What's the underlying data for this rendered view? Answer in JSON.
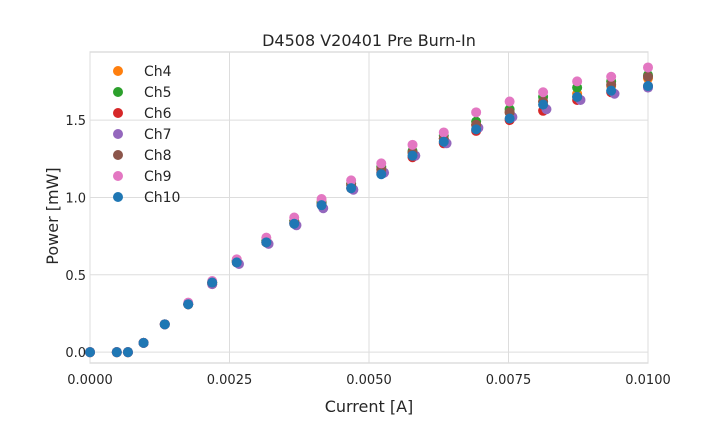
{
  "chart_data": {
    "type": "scatter",
    "title": "D4508 V20401 Pre Burn-In",
    "xlabel": "Current [A]",
    "ylabel": "Power [mW]",
    "xlim": [
      0,
      0.01
    ],
    "ylim": [
      -0.07,
      1.94
    ],
    "xticks": [
      {
        "value": 0.0,
        "label": "0.0000"
      },
      {
        "value": 0.0025,
        "label": "0.0025"
      },
      {
        "value": 0.005,
        "label": "0.0050"
      },
      {
        "value": 0.0075,
        "label": "0.0075"
      },
      {
        "value": 0.01,
        "label": "0.0100"
      }
    ],
    "yticks": [
      {
        "value": 0.0,
        "label": "0.0"
      },
      {
        "value": 0.5,
        "label": "0.5"
      },
      {
        "value": 1.0,
        "label": "1.0"
      },
      {
        "value": 1.5,
        "label": "1.5"
      }
    ],
    "grid": true,
    "legend_position": "top-left",
    "series": [
      {
        "name": "Ch4",
        "color": "#ff7f0e",
        "x": [
          0.0,
          0.00048,
          0.00068,
          0.00096,
          0.00134,
          0.00176,
          0.00219,
          0.00263,
          0.00316,
          0.00366,
          0.00415,
          0.00468,
          0.00522,
          0.00578,
          0.00634,
          0.00692,
          0.00752,
          0.00812,
          0.00873,
          0.00934,
          0.01
        ],
        "y": [
          0.0,
          0.0,
          0.0,
          0.06,
          0.18,
          0.31,
          0.45,
          0.59,
          0.72,
          0.85,
          0.97,
          1.09,
          1.19,
          1.29,
          1.38,
          1.47,
          1.55,
          1.62,
          1.67,
          1.72,
          1.77
        ]
      },
      {
        "name": "Ch5",
        "color": "#2ca02c",
        "x": [
          0.0,
          0.00048,
          0.00068,
          0.00096,
          0.00134,
          0.00176,
          0.00219,
          0.00263,
          0.00316,
          0.00366,
          0.00415,
          0.00468,
          0.00522,
          0.00578,
          0.00634,
          0.00692,
          0.00752,
          0.00812,
          0.00873,
          0.00934,
          0.01
        ],
        "y": [
          0.0,
          0.0,
          0.0,
          0.06,
          0.18,
          0.31,
          0.45,
          0.59,
          0.72,
          0.85,
          0.97,
          1.09,
          1.2,
          1.3,
          1.4,
          1.49,
          1.57,
          1.65,
          1.71,
          1.75,
          1.79
        ]
      },
      {
        "name": "Ch6",
        "color": "#d62728",
        "x": [
          0.0,
          0.00048,
          0.00068,
          0.00096,
          0.00134,
          0.00176,
          0.00219,
          0.00263,
          0.00316,
          0.00366,
          0.00415,
          0.00468,
          0.00522,
          0.00578,
          0.00634,
          0.00692,
          0.00752,
          0.00812,
          0.00873,
          0.00934,
          0.01
        ],
        "y": [
          0.0,
          0.0,
          0.0,
          0.06,
          0.18,
          0.31,
          0.44,
          0.58,
          0.71,
          0.83,
          0.95,
          1.06,
          1.16,
          1.26,
          1.35,
          1.43,
          1.5,
          1.56,
          1.63,
          1.68,
          1.72
        ]
      },
      {
        "name": "Ch7",
        "color": "#9467bd",
        "x": [
          0.0,
          0.00048,
          0.00068,
          0.00096,
          0.00134,
          0.00176,
          0.00219,
          0.00267,
          0.0032,
          0.0037,
          0.00418,
          0.00472,
          0.00527,
          0.00583,
          0.00639,
          0.00696,
          0.00757,
          0.00818,
          0.00879,
          0.0094,
          0.01
        ],
        "y": [
          0.0,
          0.0,
          0.0,
          0.06,
          0.18,
          0.31,
          0.44,
          0.57,
          0.7,
          0.82,
          0.93,
          1.05,
          1.16,
          1.27,
          1.35,
          1.45,
          1.52,
          1.57,
          1.63,
          1.67,
          1.71
        ]
      },
      {
        "name": "Ch8",
        "color": "#8c564b",
        "x": [
          0.0,
          0.00048,
          0.00068,
          0.00096,
          0.00134,
          0.00176,
          0.00219,
          0.00263,
          0.00316,
          0.00366,
          0.00415,
          0.00468,
          0.00522,
          0.00578,
          0.00634,
          0.00692,
          0.00752,
          0.00812,
          0.00873,
          0.00934,
          0.01
        ],
        "y": [
          0.0,
          0.0,
          0.0,
          0.06,
          0.18,
          0.31,
          0.45,
          0.59,
          0.71,
          0.84,
          0.96,
          1.08,
          1.18,
          1.29,
          1.38,
          1.47,
          1.55,
          1.62,
          1.65,
          1.73,
          1.78
        ]
      },
      {
        "name": "Ch9",
        "color": "#e377c2",
        "x": [
          0.0,
          0.00048,
          0.00068,
          0.00096,
          0.00134,
          0.00176,
          0.00219,
          0.00263,
          0.00316,
          0.00366,
          0.00415,
          0.00468,
          0.00522,
          0.00578,
          0.00634,
          0.00692,
          0.00752,
          0.00812,
          0.00873,
          0.00934,
          0.01
        ],
        "y": [
          0.0,
          0.0,
          0.0,
          0.06,
          0.18,
          0.32,
          0.46,
          0.6,
          0.74,
          0.87,
          0.99,
          1.11,
          1.22,
          1.34,
          1.42,
          1.55,
          1.62,
          1.68,
          1.75,
          1.78,
          1.84
        ]
      },
      {
        "name": "Ch10",
        "color": "#1f77b4",
        "x": [
          0.0,
          0.00048,
          0.00068,
          0.00096,
          0.00134,
          0.00176,
          0.00219,
          0.00263,
          0.00316,
          0.00366,
          0.00415,
          0.00468,
          0.00522,
          0.00578,
          0.00634,
          0.00692,
          0.00752,
          0.00812,
          0.00873,
          0.00934,
          0.01
        ],
        "y": [
          0.0,
          0.0,
          0.0,
          0.06,
          0.18,
          0.31,
          0.45,
          0.58,
          0.71,
          0.83,
          0.95,
          1.06,
          1.15,
          1.27,
          1.36,
          1.44,
          1.51,
          1.6,
          1.65,
          1.69,
          1.72
        ]
      }
    ]
  }
}
